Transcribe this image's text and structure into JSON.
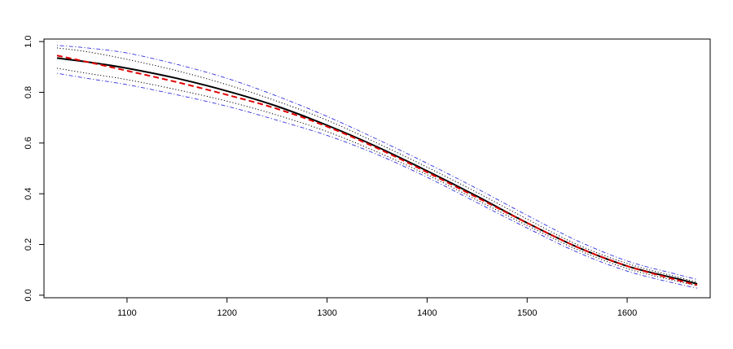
{
  "chart_data": {
    "type": "line",
    "title": "",
    "xlabel": "",
    "ylabel": "",
    "xlim": [
      1017,
      1683
    ],
    "ylim": [
      -0.01,
      1.01
    ],
    "grid": false,
    "legend": "none",
    "x_ticks": [
      "1100",
      "1200",
      "1300",
      "1400",
      "1500",
      "1600"
    ],
    "y_ticks": [
      "0.0",
      "0.2",
      "0.4",
      "0.6",
      "0.8",
      "1.0"
    ],
    "x": [
      1030,
      1060,
      1100,
      1150,
      1200,
      1250,
      1300,
      1350,
      1400,
      1450,
      1500,
      1550,
      1600,
      1650,
      1670
    ],
    "series": [
      {
        "name": "",
        "style": "solid",
        "color": "#000000",
        "values": [
          0.935,
          0.92,
          0.895,
          0.855,
          0.805,
          0.745,
          0.67,
          0.585,
          0.49,
          0.39,
          0.285,
          0.19,
          0.115,
          0.065,
          0.045
        ]
      },
      {
        "name": "",
        "style": "dashed",
        "color": "#e00000",
        "values": [
          0.945,
          0.92,
          0.885,
          0.84,
          0.79,
          0.735,
          0.665,
          0.58,
          0.485,
          0.385,
          0.285,
          0.19,
          0.115,
          0.06,
          0.04
        ]
      },
      {
        "name": "",
        "style": "dotted",
        "color": "#000000",
        "values": [
          0.975,
          0.96,
          0.93,
          0.885,
          0.83,
          0.765,
          0.69,
          0.6,
          0.505,
          0.405,
          0.3,
          0.2,
          0.125,
          0.072,
          0.052
        ]
      },
      {
        "name": "",
        "style": "dotted",
        "color": "#000000",
        "values": [
          0.895,
          0.875,
          0.85,
          0.81,
          0.765,
          0.71,
          0.645,
          0.565,
          0.475,
          0.375,
          0.275,
          0.18,
          0.105,
          0.055,
          0.038
        ]
      },
      {
        "name": "",
        "style": "dotdash",
        "color": "#3030e0",
        "values": [
          0.985,
          0.975,
          0.955,
          0.91,
          0.855,
          0.785,
          0.705,
          0.615,
          0.52,
          0.42,
          0.315,
          0.215,
          0.135,
          0.082,
          0.062
        ]
      },
      {
        "name": "",
        "style": "dotdash",
        "color": "#3030e0",
        "values": [
          0.875,
          0.855,
          0.83,
          0.79,
          0.745,
          0.69,
          0.63,
          0.555,
          0.465,
          0.365,
          0.265,
          0.17,
          0.095,
          0.045,
          0.028
        ]
      }
    ]
  }
}
